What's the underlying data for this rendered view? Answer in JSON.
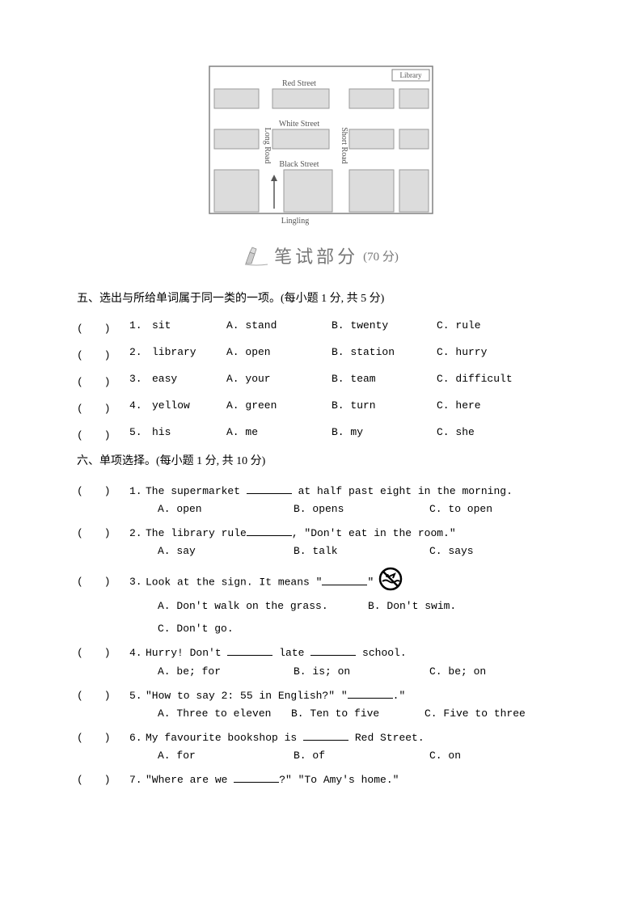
{
  "map": {
    "library_label": "Library",
    "streets": {
      "red": "Red Street",
      "white": "White Street",
      "black": "Black Street",
      "long": "Long Road",
      "short": "Short Road"
    },
    "person": "Lingling",
    "colors": {
      "border": "#808080",
      "block_fill": "#dcdcdc",
      "block_stroke": "#9a9a9a",
      "text": "#555555",
      "arrow": "#555555"
    }
  },
  "banner": {
    "title": "笔试部分",
    "score": "(70 分)",
    "title_color": "#777777",
    "title_fontsize": 22
  },
  "section5": {
    "title": "五、选出与所给单词属于同一类的一项。(每小题 1 分, 共 5 分)",
    "paren": "(　　)",
    "items": [
      {
        "n": "1.",
        "word": "sit",
        "a": "A. stand",
        "b": "B. twenty",
        "c": "C. rule"
      },
      {
        "n": "2.",
        "word": "library",
        "a": "A. open",
        "b": "B. station",
        "c": "C. hurry"
      },
      {
        "n": "3.",
        "word": "easy",
        "a": "A. your",
        "b": "B. team",
        "c": "C. difficult"
      },
      {
        "n": "4.",
        "word": "yellow",
        "a": "A. green",
        "b": "B. turn",
        "c": "C. here"
      },
      {
        "n": "5.",
        "word": "his",
        "a": "A. me",
        "b": "B. my",
        "c": "C. she"
      }
    ]
  },
  "section6": {
    "title": "六、单项选择。(每小题 1 分, 共 10 分)",
    "paren": "(　　)",
    "items": [
      {
        "n": "1.",
        "stem_pre": "The supermarket ",
        "stem_post": " at half past eight in the morning.",
        "opts": [
          "A. open",
          "B. opens",
          "C. to open"
        ]
      },
      {
        "n": "2.",
        "stem_pre": "The library rule",
        "stem_post": ", \"Don't eat in the room.\"",
        "opts": [
          "A. say",
          "B. talk",
          "C. says"
        ]
      },
      {
        "n": "3.",
        "stem_pre": "Look at the sign. It means \"",
        "stem_post": "\"",
        "has_icon": true,
        "opts_layout": "two_one",
        "opts": [
          "A. Don't walk on the grass.",
          "B. Don't swim.",
          "C. Don't go."
        ]
      },
      {
        "n": "4.",
        "stem_pre": "Hurry! Don't ",
        "stem_mid": " late ",
        "stem_post": " school.",
        "double_blank": true,
        "opts": [
          "A. be; for",
          "B. is; on",
          "C. be; on"
        ]
      },
      {
        "n": "5.",
        "stem_pre": "\"How to say 2: 55 in English?\" \"",
        "stem_post": ".\"",
        "opts": [
          "A. Three to eleven",
          "B. Ten to five",
          "C. Five to three"
        ],
        "narrow": true
      },
      {
        "n": "6.",
        "stem_pre": "My favourite bookshop is ",
        "stem_post": " Red Street.",
        "opts": [
          "A. for",
          "B. of",
          "C. on"
        ]
      },
      {
        "n": "7.",
        "stem_pre": "\"Where are we ",
        "stem_post": "?\" \"To Amy's home.\"",
        "opts": null
      }
    ]
  }
}
